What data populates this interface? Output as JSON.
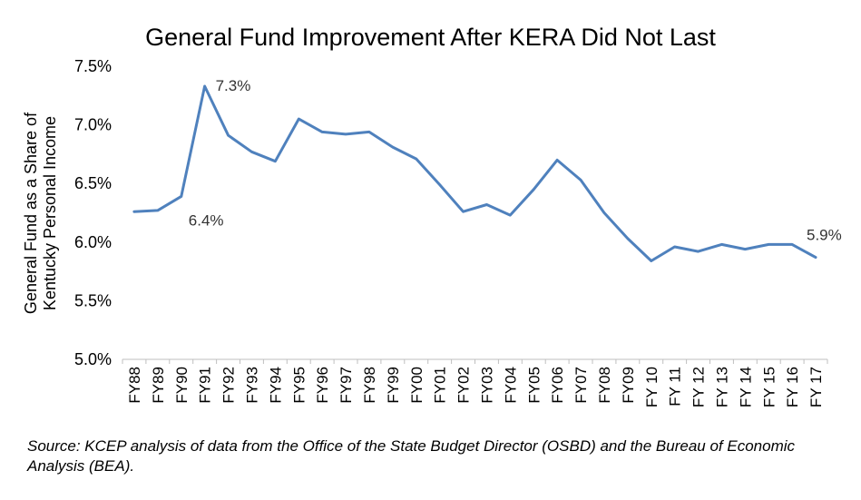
{
  "chart_data": {
    "type": "line",
    "title": "General Fund Improvement After KERA Did Not Last",
    "ylabel_lines": [
      "General Fund as a Share of",
      "Kentucky Personal Income"
    ],
    "xlabel": "",
    "categories": [
      "FY88",
      "FY89",
      "FY90",
      "FY91",
      "FY92",
      "FY93",
      "FY94",
      "FY95",
      "FY96",
      "FY97",
      "FY98",
      "FY99",
      "FY00",
      "FY01",
      "FY02",
      "FY03",
      "FY04",
      "FY05",
      "FY06",
      "FY07",
      "FY08",
      "FY09",
      "FY 10",
      "FY 11",
      "FY 12",
      "FY 13",
      "FY 14",
      "FY 15",
      "FY 16",
      "FY 17"
    ],
    "series": [
      {
        "values": [
          6.26,
          6.27,
          6.39,
          7.33,
          6.91,
          6.77,
          6.69,
          7.05,
          6.94,
          6.92,
          6.94,
          6.81,
          6.71,
          6.49,
          6.26,
          6.32,
          6.23,
          6.45,
          6.7,
          6.53,
          6.25,
          6.03,
          5.84,
          5.96,
          5.92,
          5.98,
          5.94,
          5.98,
          5.98,
          5.87
        ],
        "color": "#4f81bd"
      }
    ],
    "ylim": [
      5.0,
      7.5
    ],
    "yticks": [
      5.0,
      5.5,
      6.0,
      6.5,
      7.0,
      7.5
    ],
    "ytick_labels": [
      "5.0%",
      "5.5%",
      "6.0%",
      "6.5%",
      "7.0%",
      "7.5%"
    ],
    "grid": false,
    "legend": "none",
    "annotations": [
      {
        "category": "FY91",
        "text": "7.3%",
        "placement": "right"
      },
      {
        "category": "FY90",
        "text": "6.4%",
        "placement": "below-right"
      },
      {
        "category": "FY 17",
        "text": "5.9%",
        "placement": "above"
      }
    ]
  },
  "source": "Source: KCEP analysis of data from the Office of the State Budget Director (OSBD) and the Bureau of Economic Analysis (BEA)."
}
